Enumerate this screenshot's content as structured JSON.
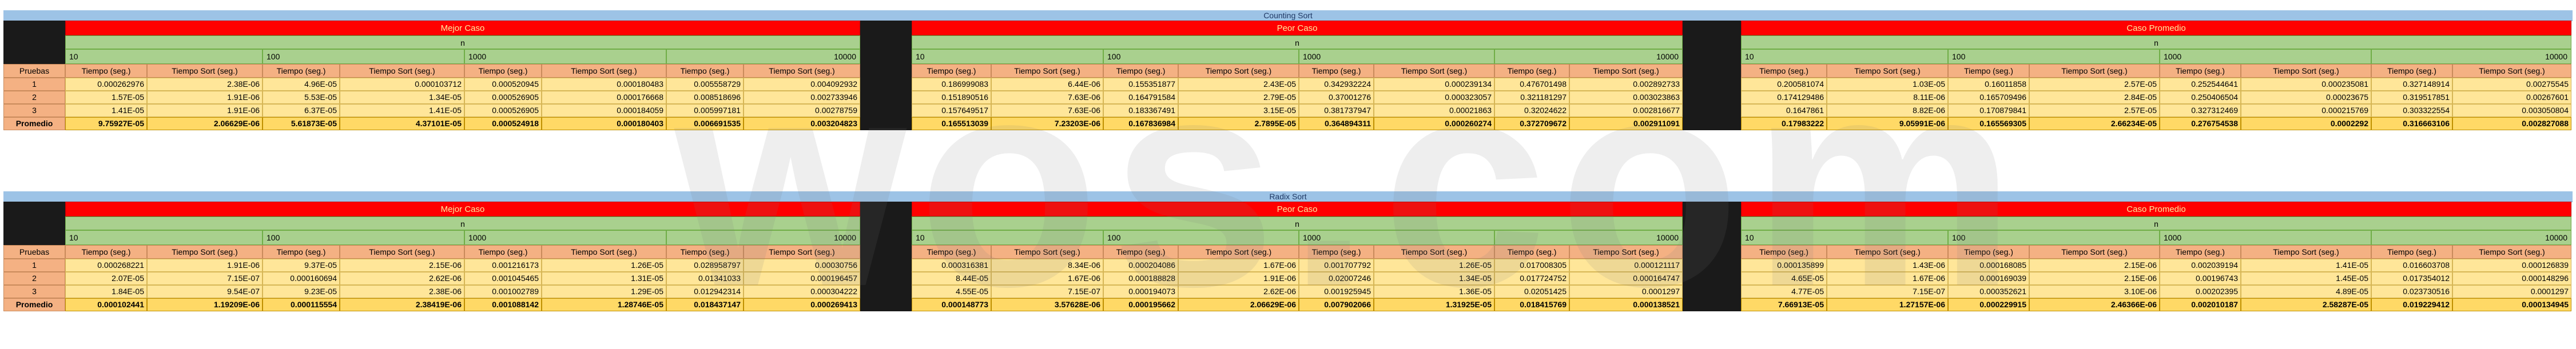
{
  "watermark": "wos.com",
  "sections": [
    {
      "title": "Counting Sort",
      "cases": [
        {
          "label": "Mejor Caso",
          "n_label": "n",
          "sizes": [
            "10",
            "100",
            "1000",
            "10000"
          ],
          "col_headers": [
            "Tiempo (seg.)",
            "Tiempo Sort (seg.)",
            "Tiempo (seg.)",
            "Tiempo Sort (seg.)",
            "Tiempo (seg.)",
            "Tiempo Sort (seg.)",
            "Tiempo (seg.)",
            "Tiempo Sort (seg.)"
          ],
          "rows": [
            [
              "0.000262976",
              "2.38E-06",
              "4.96E-05",
              "0.000103712",
              "0.000520945",
              "0.000180483",
              "0.005558729",
              "0.004092932"
            ],
            [
              "1.57E-05",
              "1.91E-06",
              "5.53E-05",
              "1.34E-05",
              "0.000526905",
              "0.000176668",
              "0.008518696",
              "0.002733946"
            ],
            [
              "1.41E-05",
              "1.91E-06",
              "6.37E-05",
              "1.41E-05",
              "0.000526905",
              "0.000184059",
              "0.005997181",
              "0.00278759"
            ]
          ],
          "avg": [
            "9.75927E-05",
            "2.06629E-06",
            "5.61873E-05",
            "4.37101E-05",
            "0.000524918",
            "0.000180403",
            "0.006691535",
            "0.003204823"
          ]
        },
        {
          "label": "Peor Caso",
          "n_label": "n",
          "sizes": [
            "10",
            "100",
            "1000",
            "10000"
          ],
          "col_headers": [
            "Tiempo (seg.)",
            "Tiempo Sort (seg.)",
            "Tiempo (seg.)",
            "Tiempo Sort (seg.)",
            "Tiempo (seg.)",
            "Tiempo Sort (seg.)",
            "Tiempo (seg.)",
            "Tiempo Sort (seg.)"
          ],
          "rows": [
            [
              "0.186999083",
              "6.44E-06",
              "0.155351877",
              "2.43E-05",
              "0.342932224",
              "0.000239134",
              "0.476701498",
              "0.002892733"
            ],
            [
              "0.151890516",
              "7.63E-06",
              "0.164791584",
              "2.79E-05",
              "0.37001276",
              "0.000323057",
              "0.321181297",
              "0.003023863"
            ],
            [
              "0.157649517",
              "7.63E-06",
              "0.183367491",
              "3.15E-05",
              "0.381737947",
              "0.00021863",
              "0.32024622",
              "0.002816677"
            ]
          ],
          "avg": [
            "0.165513039",
            "7.23203E-06",
            "0.167836984",
            "2.7895E-05",
            "0.364894311",
            "0.000260274",
            "0.372709672",
            "0.002911091"
          ]
        },
        {
          "label": "Caso Promedio",
          "n_label": "n",
          "sizes": [
            "10",
            "100",
            "1000",
            "10000"
          ],
          "col_headers": [
            "Tiempo (seg.)",
            "Tiempo Sort (seg.)",
            "Tiempo (seg.)",
            "Tiempo Sort (seg.)",
            "Tiempo (seg.)",
            "Tiempo Sort (seg.)",
            "Tiempo (seg.)",
            "Tiempo Sort (seg.)"
          ],
          "rows": [
            [
              "0.200581074",
              "1.03E-05",
              "0.16011858",
              "2.57E-05",
              "0.252544641",
              "0.000235081",
              "0.327148914",
              "0.00275545"
            ],
            [
              "0.174129486",
              "8.11E-06",
              "0.165709496",
              "2.84E-05",
              "0.250406504",
              "0.00023675",
              "0.319517851",
              "0.00267601"
            ],
            [
              "0.1647861",
              "8.82E-06",
              "0.170879841",
              "2.57E-05",
              "0.327312469",
              "0.000215769",
              "0.303322554",
              "0.003050804"
            ]
          ],
          "avg": [
            "0.17983222",
            "9.05991E-06",
            "0.165569305",
            "2.66234E-05",
            "0.276754538",
            "0.0002292",
            "0.316663106",
            "0.002827088"
          ]
        }
      ],
      "pruebas_label": "Pruebas",
      "row_labels": [
        "1",
        "2",
        "3"
      ],
      "avg_label": "Promedio"
    },
    {
      "title": "Radix Sort",
      "cases": [
        {
          "label": "Mejor Caso",
          "n_label": "n",
          "sizes": [
            "10",
            "100",
            "1000",
            "10000"
          ],
          "col_headers": [
            "Tiempo (seg.)",
            "Tiempo Sort (seg.)",
            "Tiempo (seg.)",
            "Tiempo Sort (seg.)",
            "Tiempo (seg.)",
            "Tiempo Sort (seg.)",
            "Tiempo (seg.)",
            "Tiempo Sort (seg.)"
          ],
          "rows": [
            [
              "0.000268221",
              "1.91E-06",
              "9.37E-05",
              "2.15E-06",
              "0.001216173",
              "1.26E-05",
              "0.028958797",
              "0.00030756"
            ],
            [
              "2.07E-05",
              "7.15E-07",
              "0.000160694",
              "2.62E-06",
              "0.001045465",
              "1.31E-05",
              "0.01341033",
              "0.000196457"
            ],
            [
              "1.84E-05",
              "9.54E-07",
              "9.23E-05",
              "2.38E-06",
              "0.001002789",
              "1.29E-05",
              "0.012942314",
              "0.000304222"
            ]
          ],
          "avg": [
            "0.000102441",
            "1.19209E-06",
            "0.000115554",
            "2.38419E-06",
            "0.001088142",
            "1.28746E-05",
            "0.018437147",
            "0.000269413"
          ]
        },
        {
          "label": "Peor Caso",
          "n_label": "n",
          "sizes": [
            "10",
            "100",
            "1000",
            "10000"
          ],
          "col_headers": [
            "Tiempo (seg.)",
            "Tiempo Sort (seg.)",
            "Tiempo (seg.)",
            "Tiempo Sort (seg.)",
            "Tiempo (seg.)",
            "Tiempo Sort (seg.)",
            "Tiempo (seg.)",
            "Tiempo Sort (seg.)"
          ],
          "rows": [
            [
              "0.000316381",
              "8.34E-06",
              "0.000204086",
              "1.67E-06",
              "0.001707792",
              "1.26E-05",
              "0.017008305",
              "0.000121117"
            ],
            [
              "8.44E-05",
              "1.67E-06",
              "0.000188828",
              "1.91E-06",
              "0.02007246",
              "1.34E-05",
              "0.017724752",
              "0.000164747"
            ],
            [
              "4.55E-05",
              "7.15E-07",
              "0.000194073",
              "2.62E-06",
              "0.001925945",
              "1.36E-05",
              "0.02051425",
              "0.0001297"
            ]
          ],
          "avg": [
            "0.000148773",
            "3.57628E-06",
            "0.000195662",
            "2.06629E-06",
            "0.007902066",
            "1.31925E-05",
            "0.018415769",
            "0.000138521"
          ]
        },
        {
          "label": "Caso Promedio",
          "n_label": "n",
          "sizes": [
            "10",
            "100",
            "1000",
            "10000"
          ],
          "col_headers": [
            "Tiempo (seg.)",
            "Tiempo Sort (seg.)",
            "Tiempo (seg.)",
            "Tiempo Sort (seg.)",
            "Tiempo (seg.)",
            "Tiempo Sort (seg.)",
            "Tiempo (seg.)",
            "Tiempo Sort (seg.)"
          ],
          "rows": [
            [
              "0.000135899",
              "1.43E-06",
              "0.000168085",
              "2.15E-06",
              "0.002039194",
              "1.41E-05",
              "0.016603708",
              "0.000126839"
            ],
            [
              "4.65E-05",
              "1.67E-06",
              "0.000169039",
              "2.15E-06",
              "0.00196743",
              "1.45E-05",
              "0.017354012",
              "0.000148296"
            ],
            [
              "4.77E-05",
              "7.15E-07",
              "0.000352621",
              "3.10E-06",
              "0.00202395",
              "4.89E-05",
              "0.023730516",
              "0.0001297"
            ]
          ],
          "avg": [
            "7.66913E-05",
            "1.27157E-06",
            "0.000229915",
            "2.46366E-06",
            "0.002010187",
            "2.58287E-05",
            "0.019229412",
            "0.000134945"
          ]
        }
      ],
      "pruebas_label": "Pruebas",
      "row_labels": [
        "1",
        "2",
        "3"
      ],
      "avg_label": "Promedio"
    }
  ]
}
